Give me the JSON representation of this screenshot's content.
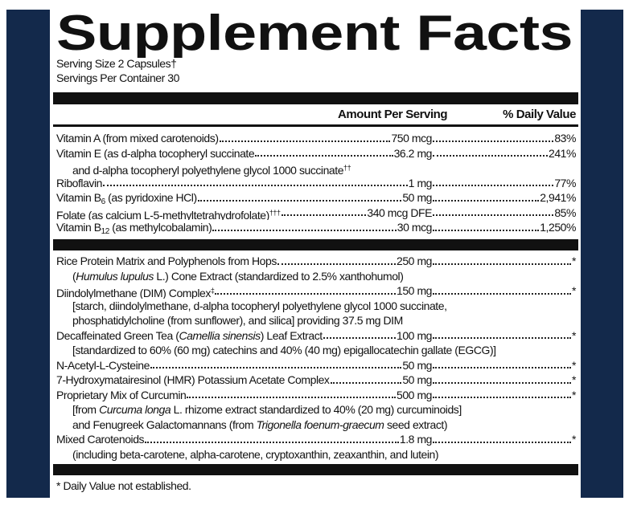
{
  "title": "Supplement Facts",
  "serving_size": "Serving Size 2 Capsules†",
  "servings_per_container": "Servings Per Container 30",
  "header": {
    "amount": "Amount Per Serving",
    "daily_value": "% Daily Value"
  },
  "vitamins": [
    {
      "name": [
        {
          "text": "Vitamin A (from mixed carotenoids)"
        }
      ],
      "amount": "750 mcg",
      "daily_value": "83%"
    },
    {
      "name": [
        {
          "text": "Vitamin E (as d-alpha tocopheryl succinate"
        }
      ],
      "amount": "36.2 mg",
      "daily_value": "241%",
      "notes": [
        [
          {
            "text": "and d-alpha tocopheryl polyethylene glycol 1000 succinate"
          },
          {
            "text": "††",
            "sup": true
          }
        ]
      ]
    },
    {
      "name": [
        {
          "text": "Riboflavin"
        }
      ],
      "amount": "1 mg",
      "daily_value": "77%"
    },
    {
      "name": [
        {
          "text": "Vitamin B"
        },
        {
          "text": "6",
          "sub": true
        },
        {
          "text": " (as pyridoxine HCl)"
        }
      ],
      "amount": "50 mg",
      "daily_value": "2,941%"
    },
    {
      "name": [
        {
          "text": "Folate (as calcium L-5-methyltetrahydrofolate)"
        },
        {
          "text": "†††",
          "sup": true
        }
      ],
      "amount": "340 mcg DFE",
      "daily_value": "85%"
    },
    {
      "name": [
        {
          "text": "Vitamin B"
        },
        {
          "text": "12",
          "sub": true
        },
        {
          "text": " (as methylcobalamin)"
        }
      ],
      "amount": "30 mcg",
      "daily_value": "1,250%"
    }
  ],
  "others": [
    {
      "name": [
        {
          "text": "Rice Protein Matrix and Polyphenols from Hops"
        }
      ],
      "amount": "250 mg",
      "daily_value": "*",
      "notes": [
        [
          {
            "text": "("
          },
          {
            "text": "Humulus lupulus",
            "italic": true
          },
          {
            "text": " L.) Cone Extract (standardized to 2.5% xanthohumol)"
          }
        ]
      ]
    },
    {
      "name": [
        {
          "text": "Diindolylmethane (DIM) Complex"
        },
        {
          "text": "‡",
          "sup": true
        }
      ],
      "amount": "150 mg",
      "daily_value": "*",
      "notes": [
        [
          {
            "text": "[starch, diindolylmethane, d-alpha tocopheryl polyethylene glycol 1000 succinate,"
          }
        ],
        [
          {
            "text": "phosphatidylcholine (from sunflower), and silica] providing 37.5 mg DIM"
          }
        ]
      ]
    },
    {
      "name": [
        {
          "text": "Decaffeinated Green Tea ("
        },
        {
          "text": "Camellia sinensis",
          "italic": true
        },
        {
          "text": ") Leaf Extract"
        }
      ],
      "amount": "100 mg",
      "daily_value": "*",
      "notes": [
        [
          {
            "text": "[standardized to 60% (60 mg) catechins and 40% (40 mg) epigallocatechin gallate (EGCG)]"
          }
        ]
      ]
    },
    {
      "name": [
        {
          "text": "N-Acetyl-L-Cysteine"
        }
      ],
      "amount": "50 mg",
      "daily_value": "*"
    },
    {
      "name": [
        {
          "text": "7-Hydroxymatairesinol (HMR) Potassium Acetate Complex"
        }
      ],
      "amount": "50 mg",
      "daily_value": "*"
    },
    {
      "name": [
        {
          "text": "Proprietary Mix of Curcumin"
        }
      ],
      "amount": "500 mg",
      "daily_value": "*",
      "notes": [
        [
          {
            "text": "[from "
          },
          {
            "text": "Curcuma longa",
            "italic": true
          },
          {
            "text": " L. rhizome extract standardized to 40% (20 mg) curcuminoids]"
          }
        ],
        [
          {
            "text": "and Fenugreek Galactomannans (from "
          },
          {
            "text": "Trigonella foenum-graecum",
            "italic": true
          },
          {
            "text": " seed extract)"
          }
        ]
      ]
    },
    {
      "name": [
        {
          "text": "Mixed Carotenoids"
        }
      ],
      "amount": "1.8 mg",
      "daily_value": "*",
      "notes": [
        [
          {
            "text": "(including beta-carotene, alpha-carotene, cryptoxanthin, zeaxanthin, and lutein)"
          }
        ]
      ]
    }
  ],
  "footnote": "* Daily Value not established."
}
